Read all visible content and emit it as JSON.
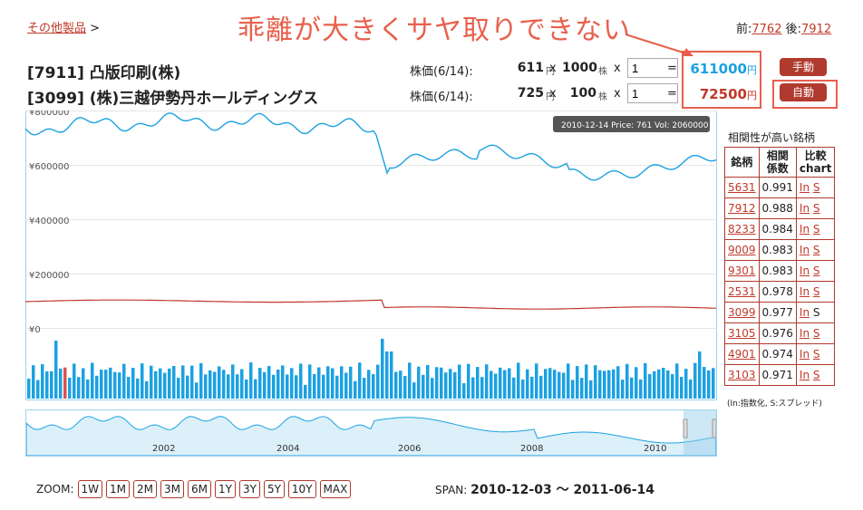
{
  "header": {
    "breadcrumb_link": "その他製品",
    "breadcrumb_sep": ">",
    "annotation": "乖離が大きくサヤ取りできない",
    "prev_label": "前:",
    "prev_code": "7762",
    "next_label": "後:",
    "next_code": "7912"
  },
  "stocks": [
    {
      "name": "[7911] 凸版印刷(株)",
      "price_label": "株価(6/14):",
      "price": "611",
      "price_unit": "円",
      "x1": "x",
      "lot": "1000",
      "lot_unit": "株",
      "x2": "x",
      "multiplier": "1",
      "eq": "=",
      "result": "611000",
      "result_unit": "円",
      "button": "手動",
      "result_color": "#1ba1e2"
    },
    {
      "name": "[3099] (株)三越伊勢丹ホールディングス",
      "price_label": "株価(6/14):",
      "price": "725",
      "price_unit": "円",
      "x1": "x",
      "lot": "100",
      "lot_unit": "株",
      "x2": "x",
      "multiplier": "1",
      "eq": "=",
      "result": "72500",
      "result_unit": "円",
      "button": "自動",
      "result_color": "#c0392b"
    }
  ],
  "chart": {
    "tooltip": "2010-12-14 Price: 761 Vol: 2060000",
    "y_labels": [
      "¥800000",
      "¥600000",
      "¥400000",
      "¥200000",
      "¥0"
    ],
    "x_labels": [
      "2002",
      "2004",
      "2006",
      "2008",
      "2010"
    ],
    "colors": {
      "series1": "#1ba1e2",
      "series2": "#c0392b",
      "volume": "#1ba1e2",
      "volume_highlight": "#d9534f"
    }
  },
  "correlation": {
    "title": "相関性が高い銘柄",
    "headers": [
      "銘柄",
      "相関\n係数",
      "比較\nchart"
    ],
    "rows": [
      {
        "code": "5631",
        "coef": "0.991",
        "in": "In",
        "s": "S"
      },
      {
        "code": "7912",
        "coef": "0.988",
        "in": "In",
        "s": "S"
      },
      {
        "code": "8233",
        "coef": "0.984",
        "in": "In",
        "s": "S"
      },
      {
        "code": "9009",
        "coef": "0.983",
        "in": "In",
        "s": "S"
      },
      {
        "code": "9301",
        "coef": "0.983",
        "in": "In",
        "s": "S"
      },
      {
        "code": "2531",
        "coef": "0.978",
        "in": "In",
        "s": "S"
      },
      {
        "code": "3099",
        "coef": "0.977",
        "in": "In",
        "s": "S"
      },
      {
        "code": "3105",
        "coef": "0.976",
        "in": "In",
        "s": "S"
      },
      {
        "code": "4901",
        "coef": "0.974",
        "in": "In",
        "s": "S"
      },
      {
        "code": "3103",
        "coef": "0.971",
        "in": "In",
        "s": "S"
      }
    ],
    "note": "(In:指数化, S:スプレッド)"
  },
  "zoom": {
    "label": "ZOOM:",
    "buttons": [
      "1W",
      "1M",
      "2M",
      "3M",
      "6M",
      "1Y",
      "3Y",
      "5Y",
      "10Y",
      "MAX"
    ]
  },
  "span": {
    "label": "SPAN:",
    "value": "2010-12-03 〜 2011-06-14"
  }
}
